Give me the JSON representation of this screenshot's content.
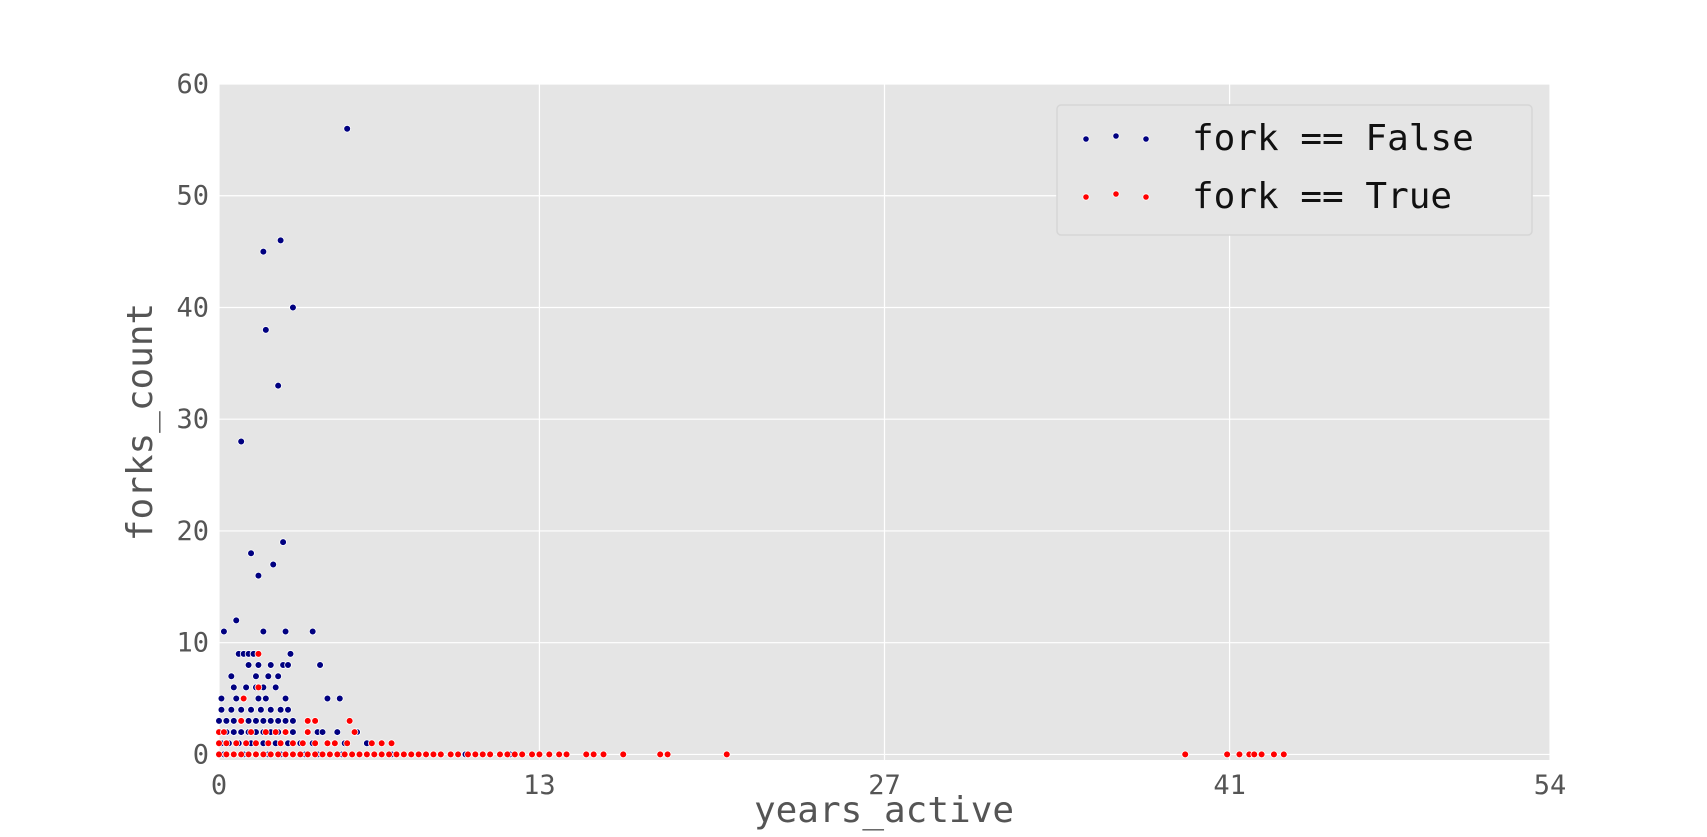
{
  "chart_data": {
    "type": "scatter",
    "xlabel": "years_active",
    "ylabel": "forks_count",
    "xlim": [
      0,
      54
    ],
    "ylim": [
      -0.5,
      60
    ],
    "xticks": [
      0,
      13,
      27,
      41,
      54
    ],
    "yticks": [
      0,
      10,
      20,
      30,
      40,
      50,
      60
    ],
    "xtick_labels": [
      "0",
      "13",
      "27",
      "41",
      "54"
    ],
    "ytick_labels": [
      "0",
      "10",
      "20",
      "30",
      "40",
      "50",
      "60"
    ],
    "grid": true,
    "legend_position": "top-right",
    "series": [
      {
        "name": "fork == False",
        "color": "#000080",
        "points": [
          [
            5.2,
            56
          ],
          [
            2.5,
            46
          ],
          [
            1.8,
            45
          ],
          [
            3.0,
            40
          ],
          [
            1.9,
            38
          ],
          [
            2.4,
            33
          ],
          [
            0.9,
            28
          ],
          [
            2.6,
            19
          ],
          [
            1.3,
            18
          ],
          [
            2.2,
            17
          ],
          [
            1.6,
            16
          ],
          [
            0.7,
            12
          ],
          [
            0.2,
            11
          ],
          [
            1.8,
            11
          ],
          [
            2.7,
            11
          ],
          [
            3.8,
            11
          ],
          [
            0.8,
            9
          ],
          [
            1.0,
            9
          ],
          [
            1.2,
            9
          ],
          [
            1.4,
            9
          ],
          [
            2.9,
            9
          ],
          [
            1.2,
            8
          ],
          [
            1.6,
            8
          ],
          [
            2.1,
            8
          ],
          [
            2.6,
            8
          ],
          [
            2.8,
            8
          ],
          [
            4.1,
            8
          ],
          [
            0.5,
            7
          ],
          [
            1.5,
            7
          ],
          [
            2.0,
            7
          ],
          [
            2.4,
            7
          ],
          [
            0.6,
            6
          ],
          [
            1.1,
            6
          ],
          [
            1.5,
            6
          ],
          [
            1.8,
            6
          ],
          [
            2.3,
            6
          ],
          [
            0.1,
            5
          ],
          [
            0.7,
            5
          ],
          [
            1.0,
            5
          ],
          [
            1.6,
            5
          ],
          [
            1.9,
            5
          ],
          [
            2.7,
            5
          ],
          [
            4.4,
            5
          ],
          [
            4.9,
            5
          ],
          [
            0.1,
            4
          ],
          [
            0.5,
            4
          ],
          [
            0.9,
            4
          ],
          [
            1.3,
            4
          ],
          [
            1.7,
            4
          ],
          [
            2.1,
            4
          ],
          [
            2.5,
            4
          ],
          [
            2.8,
            4
          ],
          [
            0.0,
            3
          ],
          [
            0.3,
            3
          ],
          [
            0.6,
            3
          ],
          [
            0.9,
            3
          ],
          [
            1.2,
            3
          ],
          [
            1.5,
            3
          ],
          [
            1.8,
            3
          ],
          [
            2.1,
            3
          ],
          [
            2.4,
            3
          ],
          [
            2.7,
            3
          ],
          [
            3.0,
            3
          ],
          [
            0.0,
            2
          ],
          [
            0.3,
            2
          ],
          [
            0.6,
            2
          ],
          [
            0.9,
            2
          ],
          [
            1.2,
            2
          ],
          [
            1.5,
            2
          ],
          [
            1.8,
            2
          ],
          [
            2.1,
            2
          ],
          [
            2.4,
            2
          ],
          [
            2.7,
            2
          ],
          [
            3.0,
            2
          ],
          [
            3.6,
            2
          ],
          [
            4.0,
            2
          ],
          [
            4.2,
            2
          ],
          [
            4.8,
            2
          ],
          [
            5.6,
            2
          ],
          [
            0.1,
            1
          ],
          [
            0.4,
            1
          ],
          [
            0.8,
            1
          ],
          [
            1.3,
            1
          ],
          [
            1.8,
            1
          ],
          [
            2.3,
            1
          ],
          [
            2.8,
            1
          ],
          [
            3.3,
            1
          ],
          [
            3.8,
            1
          ],
          [
            4.4,
            1
          ],
          [
            5.1,
            1
          ],
          [
            6.0,
            1
          ],
          [
            0.2,
            0
          ],
          [
            0.6,
            0
          ],
          [
            1.0,
            0
          ],
          [
            1.5,
            0
          ],
          [
            2.0,
            0
          ],
          [
            2.5,
            0
          ],
          [
            3.0,
            0
          ],
          [
            3.5,
            0
          ],
          [
            4.0,
            0
          ],
          [
            5.0,
            0
          ],
          [
            6.0,
            0
          ],
          [
            7.0,
            0
          ],
          [
            10.0,
            0
          ],
          [
            11.8,
            0
          ]
        ]
      },
      {
        "name": "fork == True",
        "color": "#ff0000",
        "points": [
          [
            1.6,
            9
          ],
          [
            1.6,
            6
          ],
          [
            1.0,
            5
          ],
          [
            0.9,
            3
          ],
          [
            3.6,
            3
          ],
          [
            3.9,
            3
          ],
          [
            5.3,
            3
          ],
          [
            0.0,
            2
          ],
          [
            0.2,
            2
          ],
          [
            1.3,
            2
          ],
          [
            1.9,
            2
          ],
          [
            2.3,
            2
          ],
          [
            2.7,
            2
          ],
          [
            3.6,
            2
          ],
          [
            5.5,
            2
          ],
          [
            0.0,
            1
          ],
          [
            0.3,
            1
          ],
          [
            0.7,
            1
          ],
          [
            1.1,
            1
          ],
          [
            1.5,
            1
          ],
          [
            2.0,
            1
          ],
          [
            2.5,
            1
          ],
          [
            3.0,
            1
          ],
          [
            3.4,
            1
          ],
          [
            3.9,
            1
          ],
          [
            4.4,
            1
          ],
          [
            4.7,
            1
          ],
          [
            5.2,
            1
          ],
          [
            6.2,
            1
          ],
          [
            6.6,
            1
          ],
          [
            7.0,
            1
          ],
          [
            0.0,
            0
          ],
          [
            0.3,
            0
          ],
          [
            0.6,
            0
          ],
          [
            0.9,
            0
          ],
          [
            1.2,
            0
          ],
          [
            1.5,
            0
          ],
          [
            1.8,
            0
          ],
          [
            2.1,
            0
          ],
          [
            2.4,
            0
          ],
          [
            2.7,
            0
          ],
          [
            3.0,
            0
          ],
          [
            3.3,
            0
          ],
          [
            3.6,
            0
          ],
          [
            3.9,
            0
          ],
          [
            4.2,
            0
          ],
          [
            4.5,
            0
          ],
          [
            4.8,
            0
          ],
          [
            5.1,
            0
          ],
          [
            5.4,
            0
          ],
          [
            5.7,
            0
          ],
          [
            6.0,
            0
          ],
          [
            6.3,
            0
          ],
          [
            6.6,
            0
          ],
          [
            6.9,
            0
          ],
          [
            7.2,
            0
          ],
          [
            7.5,
            0
          ],
          [
            7.8,
            0
          ],
          [
            8.1,
            0
          ],
          [
            8.4,
            0
          ],
          [
            8.7,
            0
          ],
          [
            9.0,
            0
          ],
          [
            9.4,
            0
          ],
          [
            9.7,
            0
          ],
          [
            10.1,
            0
          ],
          [
            10.4,
            0
          ],
          [
            10.7,
            0
          ],
          [
            11.0,
            0
          ],
          [
            11.4,
            0
          ],
          [
            11.7,
            0
          ],
          [
            12.0,
            0
          ],
          [
            12.3,
            0
          ],
          [
            12.7,
            0
          ],
          [
            13.0,
            0
          ],
          [
            13.4,
            0
          ],
          [
            13.8,
            0
          ],
          [
            14.1,
            0
          ],
          [
            14.9,
            0
          ],
          [
            15.2,
            0
          ],
          [
            15.6,
            0
          ],
          [
            16.4,
            0
          ],
          [
            17.9,
            0
          ],
          [
            18.2,
            0
          ],
          [
            20.6,
            0
          ],
          [
            39.2,
            0
          ],
          [
            40.9,
            0
          ],
          [
            41.4,
            0
          ],
          [
            41.8,
            0
          ],
          [
            42.0,
            0
          ],
          [
            42.3,
            0
          ],
          [
            42.8,
            0
          ],
          [
            43.2,
            0
          ]
        ]
      }
    ]
  }
}
